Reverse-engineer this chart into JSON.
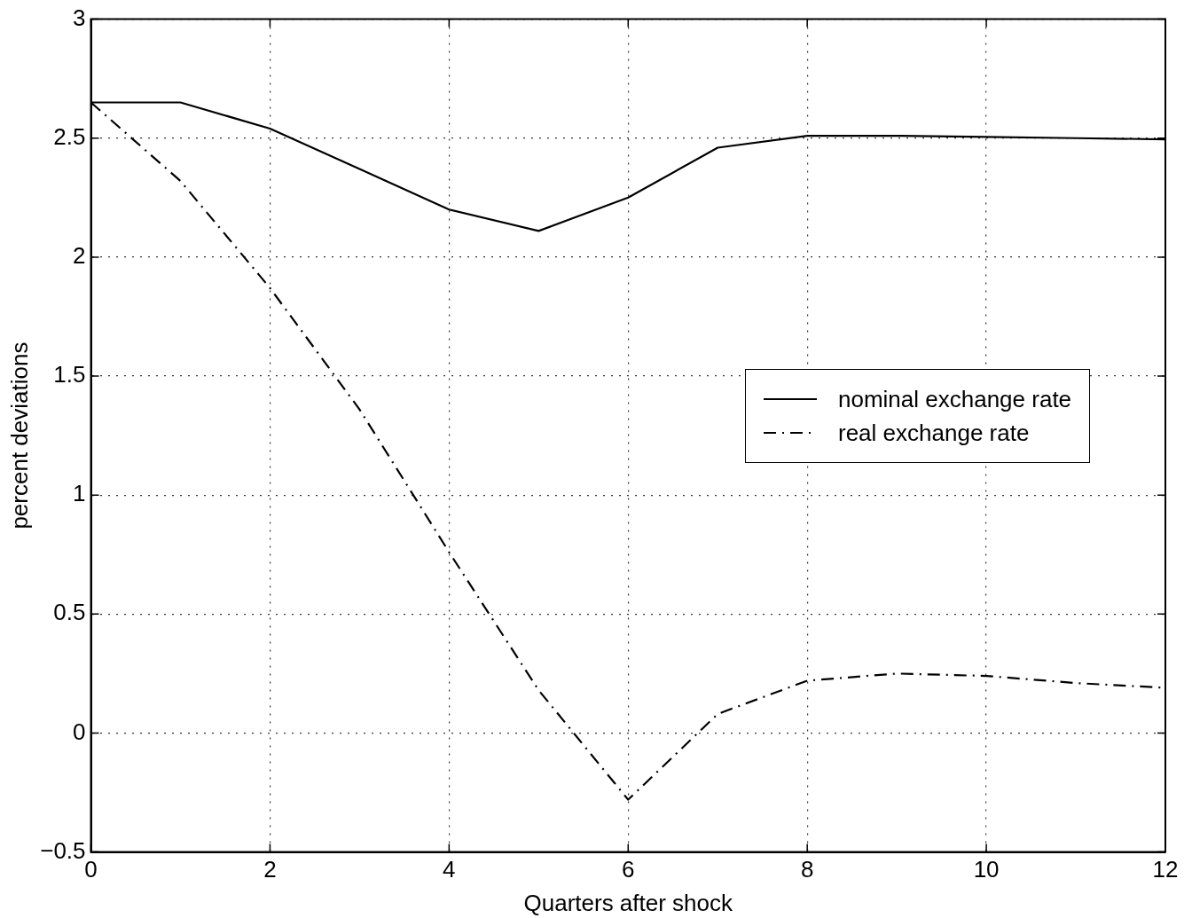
{
  "chart_data": {
    "type": "line",
    "xlabel": "Quarters after shock",
    "ylabel": "percent deviations",
    "x": [
      0,
      1,
      2,
      3,
      4,
      5,
      6,
      7,
      8,
      9,
      10,
      11,
      12
    ],
    "series": [
      {
        "name": "nominal exchange rate",
        "color": "#000000",
        "line_style": "solid",
        "values": [
          2.65,
          2.65,
          2.54,
          2.37,
          2.2,
          2.11,
          2.25,
          2.46,
          2.51,
          2.51,
          2.505,
          2.5,
          2.495
        ]
      },
      {
        "name": "real exchange rate",
        "color": "#000000",
        "line_style": "dashdot",
        "values": [
          2.65,
          2.32,
          1.87,
          1.36,
          0.76,
          0.18,
          -0.28,
          0.08,
          0.22,
          0.25,
          0.24,
          0.21,
          0.19
        ]
      }
    ],
    "xlim": [
      0,
      12
    ],
    "xticks": [
      0,
      2,
      4,
      6,
      8,
      10,
      12
    ],
    "ylim": [
      -0.5,
      3
    ],
    "yticks": [
      -0.5,
      0,
      0.5,
      1,
      1.5,
      2,
      2.5,
      3
    ],
    "grid": true,
    "legend": "right",
    "marker": "none"
  }
}
